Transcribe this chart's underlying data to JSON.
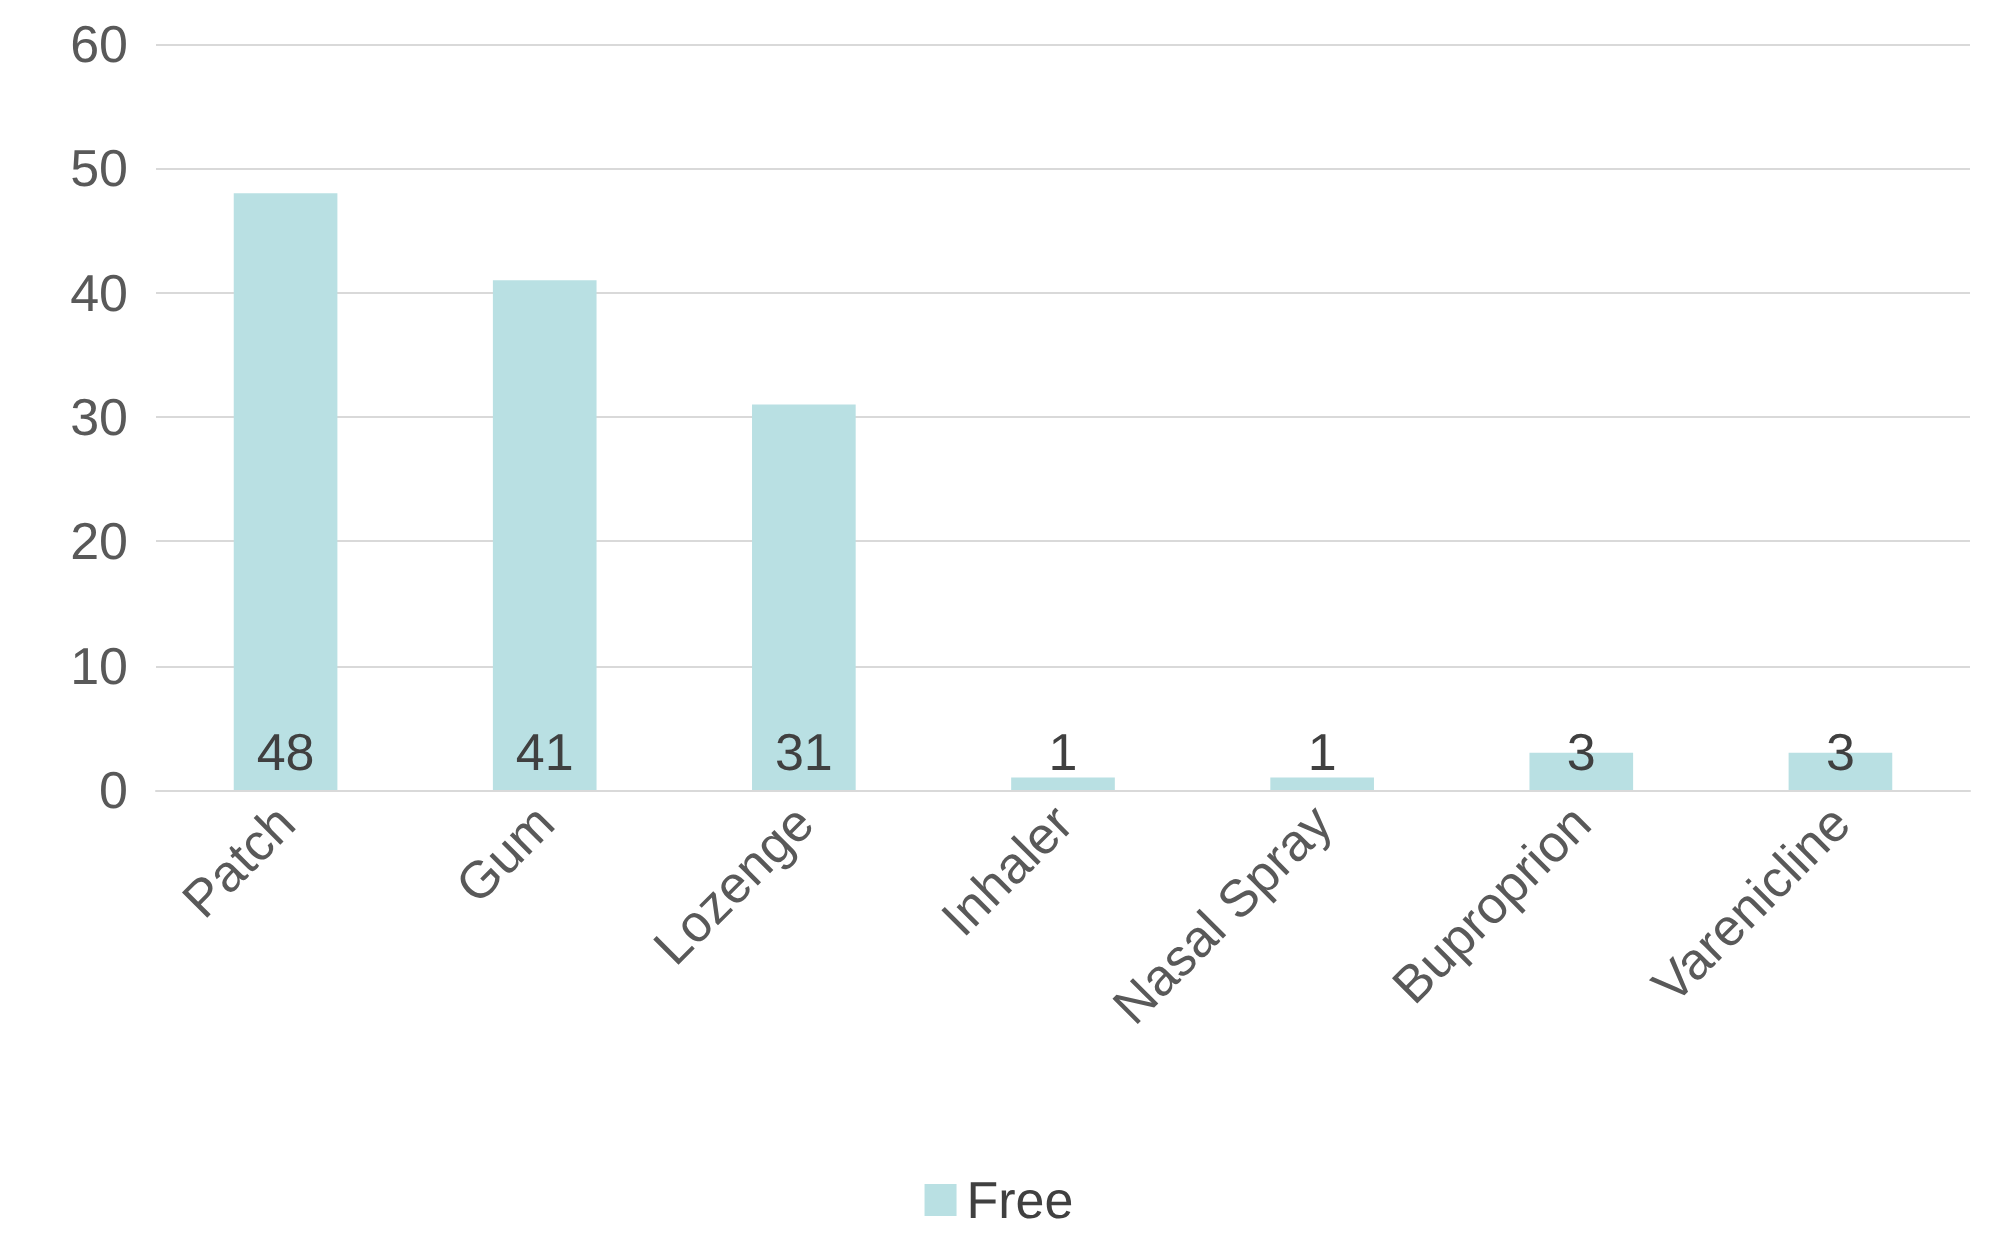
{
  "chart_data": {
    "type": "bar",
    "categories": [
      "Patch",
      "Gum",
      "Lozenge",
      "Inhaler",
      "Nasal Spray",
      "Buproprion",
      "Varenicline"
    ],
    "series": [
      {
        "name": "Free",
        "color": "#b9e0e3",
        "values": [
          48,
          41,
          31,
          1,
          1,
          3,
          3
        ]
      }
    ],
    "ylim": [
      0,
      60
    ],
    "yticks": [
      0,
      10,
      20,
      30,
      40,
      50,
      60
    ],
    "grid": "y",
    "legend": "bottom",
    "data_labels": true
  }
}
